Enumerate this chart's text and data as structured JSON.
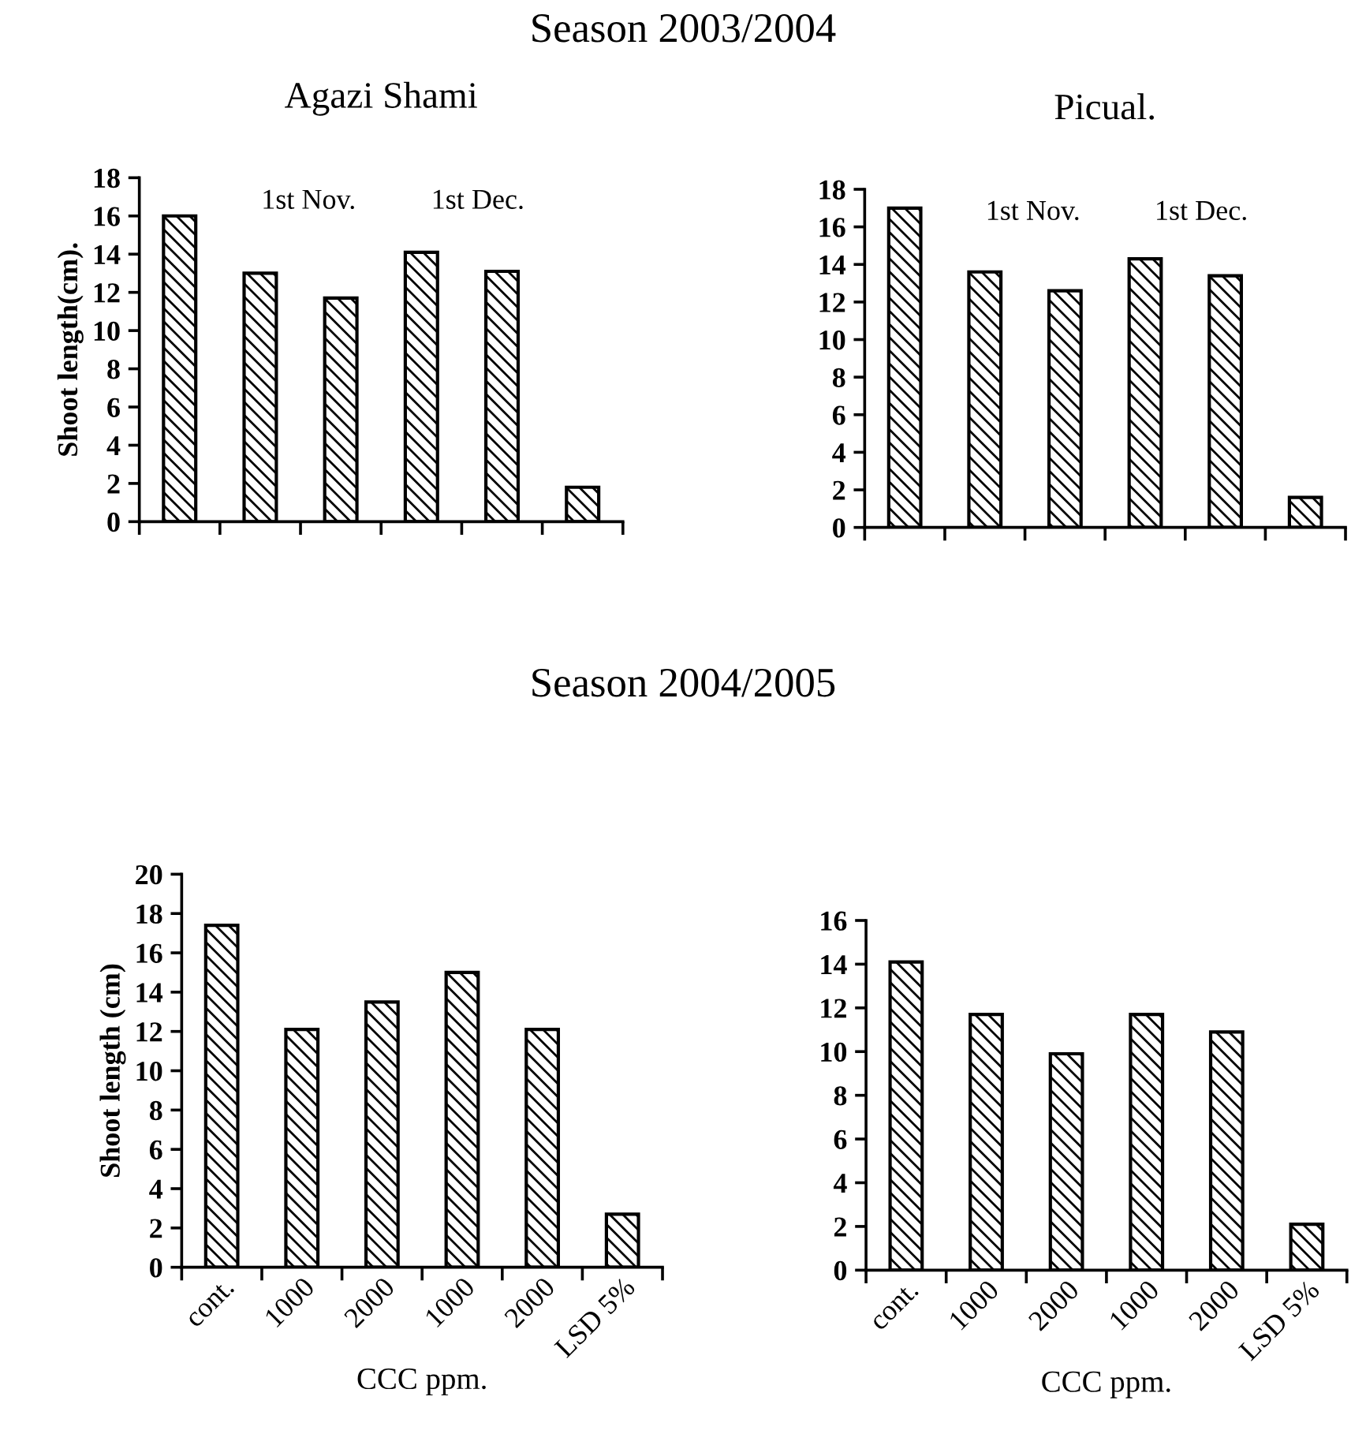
{
  "chart_data": [
    {
      "type": "bar",
      "title": "Agazi Shami",
      "ylabel": "Shoot length(cm).",
      "categories": [
        null,
        null,
        null,
        null,
        null,
        null
      ],
      "values": [
        16,
        13,
        11.7,
        14.1,
        13.1,
        1.8
      ],
      "color": "#000000",
      "ylim": [
        0,
        18
      ],
      "yticks": [
        0,
        2,
        4,
        6,
        8,
        10,
        12,
        14,
        16,
        18
      ],
      "tick_labels": "y",
      "grid": false,
      "legend": false,
      "annotations": [
        "Season 2003/2004",
        "1st Nov.",
        "1st Dec."
      ]
    },
    {
      "type": "bar",
      "title": "Picual.",
      "categories": [
        null,
        null,
        null,
        null,
        null,
        null
      ],
      "values": [
        17,
        13.6,
        12.6,
        14.3,
        13.4,
        1.6
      ],
      "color": "#000000",
      "ylim": [
        0,
        18
      ],
      "yticks": [
        0,
        2,
        4,
        6,
        8,
        10,
        12,
        14,
        16,
        18
      ],
      "tick_labels": "y",
      "grid": false,
      "legend": false,
      "annotations": [
        "1st Nov.",
        "1st Dec."
      ]
    },
    {
      "type": "bar",
      "xlabel": "CCC ppm.",
      "ylabel": "Shoot length (cm)",
      "categories": [
        "cont.",
        "1000",
        "2000",
        "1000",
        "2000",
        "LSD 5%"
      ],
      "values": [
        17.4,
        12.1,
        13.5,
        15,
        12.1,
        2.7
      ],
      "color": "#000000",
      "ylim": [
        0,
        20
      ],
      "yticks": [
        0,
        2,
        4,
        6,
        8,
        10,
        12,
        14,
        16,
        18,
        20
      ],
      "grid": false,
      "legend": false,
      "annotations": [
        "Season 2004/2005"
      ]
    },
    {
      "type": "bar",
      "xlabel": "CCC ppm.",
      "categories": [
        "cont.",
        "1000",
        "2000",
        "1000",
        "2000",
        "LSD 5%"
      ],
      "values": [
        14.1,
        11.7,
        9.9,
        11.7,
        10.9,
        2.1
      ],
      "color": "#000000",
      "ylim": [
        0,
        16
      ],
      "yticks": [
        0,
        2,
        4,
        6,
        8,
        10,
        12,
        14,
        16
      ],
      "grid": false,
      "legend": false
    }
  ]
}
